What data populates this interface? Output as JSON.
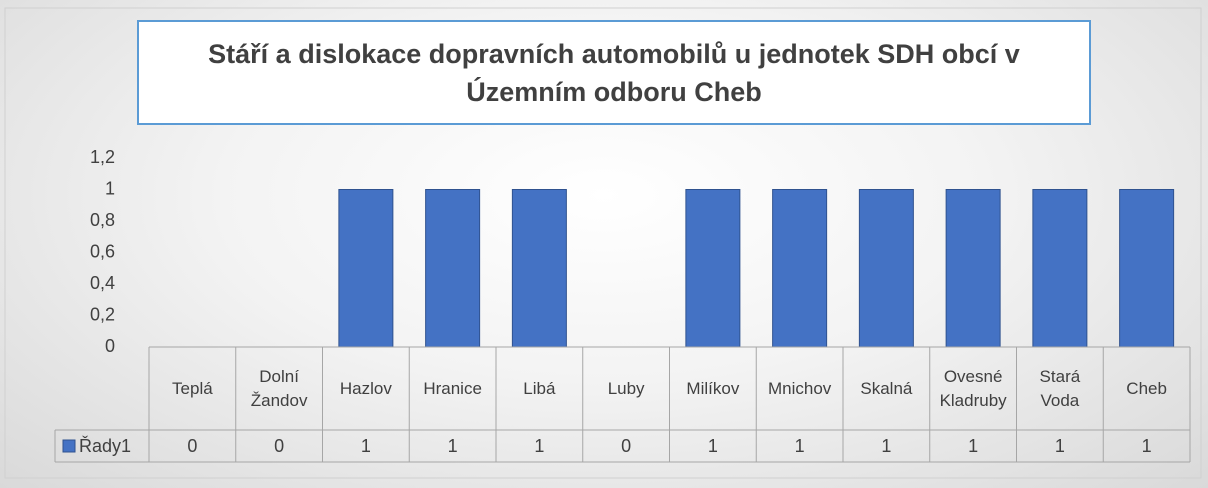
{
  "chart_data": {
    "type": "bar",
    "title": "Stáří a dislokace dopravních automobilů u jednotek SDH obcí v Územním odboru Cheb",
    "categories": [
      "Teplá",
      "Dolní Žandov",
      "Hazlov",
      "Hranice",
      "Libá",
      "Luby",
      "Milíkov",
      "Mnichov",
      "Skalná",
      "Ovesné Kladruby",
      "Stará Voda",
      "Cheb"
    ],
    "series": [
      {
        "name": "Řady1",
        "color": "#4472c4",
        "values": [
          0,
          0,
          1,
          1,
          1,
          0,
          1,
          1,
          1,
          1,
          1,
          1
        ]
      }
    ],
    "ylim": [
      0,
      1.2
    ],
    "yticks": [
      0,
      {
        "value": 0.2,
        "label": "0,2"
      },
      {
        "value": 0.4,
        "label": "0,4"
      },
      {
        "value": 0.6,
        "label": "0,6"
      },
      {
        "value": 0.8,
        "label": "0,8"
      },
      1,
      {
        "value": 1.2,
        "label": "1,2"
      }
    ],
    "data_table": true
  }
}
